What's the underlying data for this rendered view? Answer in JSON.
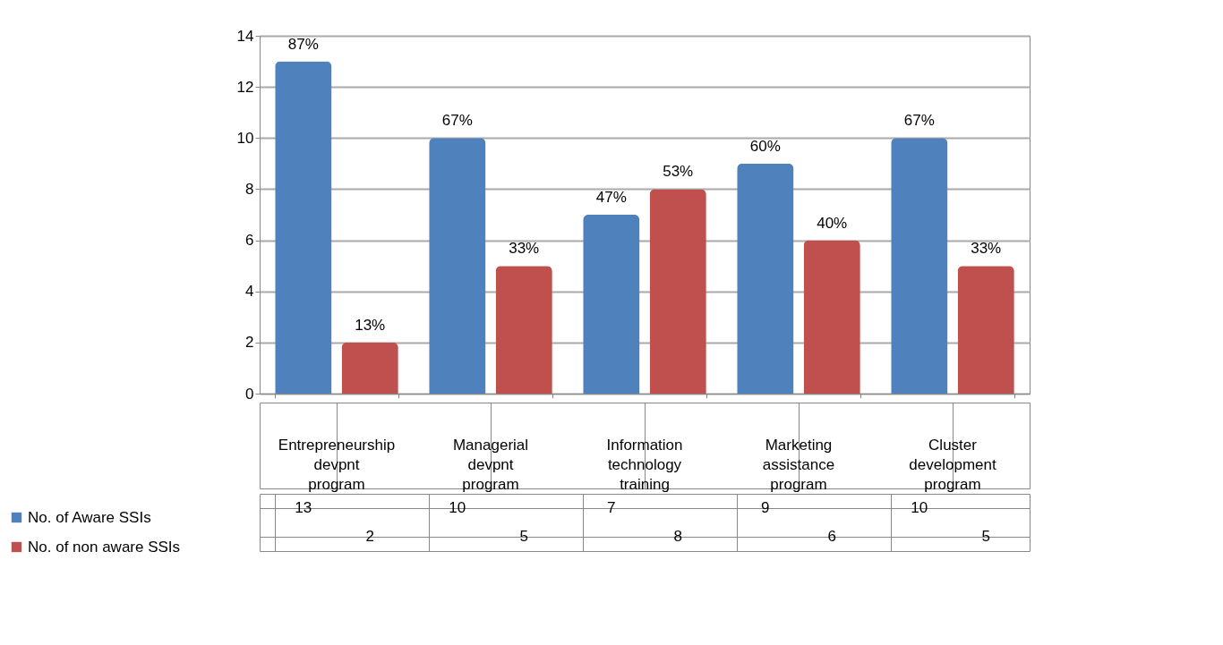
{
  "chart_data": {
    "type": "bar",
    "categories": [
      "Entrepreneurship devpnt program",
      "Managerial devpnt program",
      "Information technology training",
      "Marketing assistance program",
      "Cluster development program"
    ],
    "series": [
      {
        "name": "No. of Aware SSIs",
        "color": "#4f81bd",
        "values": [
          13,
          10,
          7,
          9,
          10
        ]
      },
      {
        "name": "No. of non aware SSIs",
        "color": "#c0504d",
        "values": [
          2,
          5,
          8,
          6,
          5
        ]
      }
    ],
    "annotations": [
      "87%",
      "67%",
      "47%",
      "60%",
      "67%",
      "13%",
      "33%",
      "53%",
      "40%",
      "33%"
    ],
    "ylim": [
      0,
      14
    ],
    "yticks": [
      0,
      2,
      4,
      6,
      8,
      10,
      12,
      14
    ],
    "grid": "y",
    "legend": "bottom left",
    "data_labels": true
  }
}
